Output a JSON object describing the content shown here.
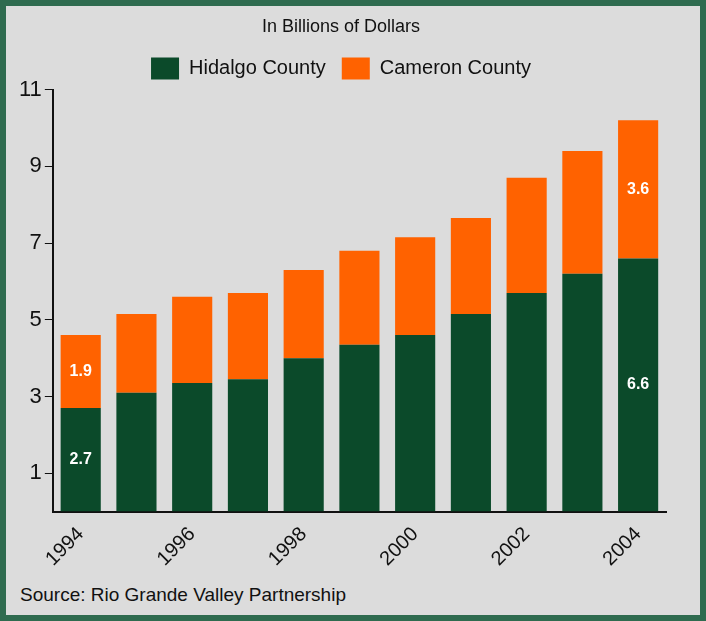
{
  "chart_data": {
    "type": "bar",
    "subtitle": "In Billions of Dollars",
    "annotation": "Source: Rio Grande Valley Partnership",
    "categories": [
      1994,
      null,
      1996,
      null,
      1998,
      null,
      2000,
      null,
      2002,
      null,
      2004
    ],
    "series": [
      {
        "name": "Hidalgo County",
        "color": "#0b4a2a",
        "values": [
          2.7,
          3.1,
          3.35,
          3.45,
          4.0,
          4.35,
          4.6,
          5.15,
          5.7,
          6.2,
          6.6
        ],
        "value_labels": [
          "2.7",
          null,
          null,
          null,
          null,
          null,
          null,
          null,
          null,
          null,
          "6.6"
        ]
      },
      {
        "name": "Cameron County",
        "color": "#ff6200",
        "values": [
          1.9,
          2.05,
          2.25,
          2.25,
          2.3,
          2.45,
          2.55,
          2.5,
          3.0,
          3.2,
          3.6
        ],
        "value_labels": [
          "1.9",
          null,
          null,
          null,
          null,
          null,
          null,
          null,
          null,
          null,
          "3.6"
        ]
      }
    ],
    "stacked": true,
    "data_labels": true,
    "ylim": [
      0,
      11
    ],
    "yticks": [
      1,
      3,
      5,
      7,
      9,
      11
    ],
    "grid": false,
    "legend": "top"
  }
}
